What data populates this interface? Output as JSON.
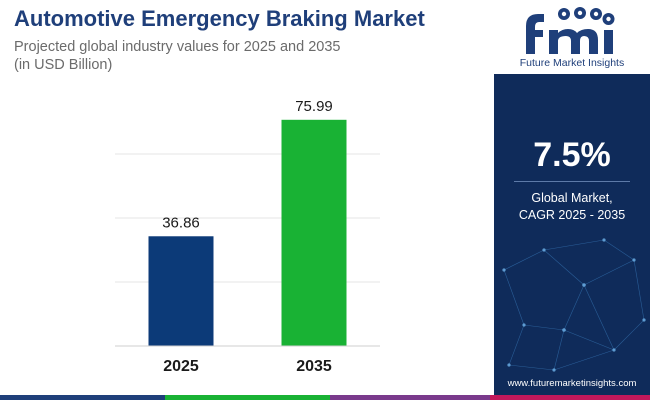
{
  "header": {
    "title": "Automotive Emergency Braking Market",
    "subtitle_line1": "Projected global industry values for 2025 and 2035",
    "subtitle_line2": "(in USD Billion)"
  },
  "chart_data": {
    "type": "bar",
    "categories": [
      "2025",
      "2035"
    ],
    "values": [
      36.86,
      75.99
    ],
    "value_labels": [
      "36.86",
      "75.99"
    ],
    "bar_colors": [
      "#0c3a78",
      "#19b234"
    ],
    "ylim": [
      0,
      86
    ],
    "grid": true,
    "title": "",
    "xlabel": "",
    "ylabel": ""
  },
  "side_panel": {
    "logo_text": "Future Market Insights",
    "cagr_value": "7.5%",
    "cagr_label_line1": "Global Market,",
    "cagr_label_line2": "CAGR 2025 - 2035",
    "website": "www.futuremarketinsights.com",
    "background_color": "#0f2b5a"
  },
  "bottom_bar": {
    "colors": [
      "#1f3f7a",
      "#19b234",
      "#7a3a8c",
      "#c2185b"
    ]
  }
}
